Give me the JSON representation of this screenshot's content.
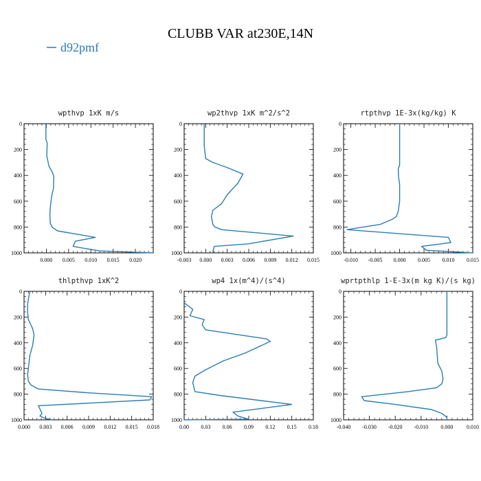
{
  "figure": {
    "title": "CLUBB VAR at230E,14N",
    "legend": {
      "label": "d92pmf",
      "color": "#2b7bb4",
      "placement": "top-left"
    }
  },
  "chart_data": [
    {
      "type": "line",
      "title": "wpthvp   1xK m/s",
      "xlim": [
        -0.005,
        0.024
      ],
      "ylim": [
        1000,
        0
      ],
      "xticks": [
        0.0,
        0.005,
        0.01,
        0.015,
        0.02
      ],
      "xtick_labels": [
        "0.000",
        "0.005",
        "0.010",
        "0.015",
        "0.020"
      ],
      "yticks": [
        0,
        200,
        400,
        600,
        800,
        1000
      ],
      "series": [
        {
          "name": "d92pmf",
          "color": "#2b7bb4",
          "x": [
            -0.0001,
            -0.0001,
            0.0002,
            0.0001,
            0.0006,
            0.0013,
            0.0017,
            0.0016,
            0.0012,
            0.0009,
            0.0008,
            0.0009,
            0.0013,
            0.0025,
            0.011,
            0.0065,
            0.006,
            0.012,
            0.024
          ],
          "y": [
            0,
            120,
            150,
            250,
            330,
            370,
            410,
            500,
            560,
            650,
            700,
            770,
            800,
            830,
            880,
            910,
            950,
            985,
            1000
          ]
        }
      ]
    },
    {
      "type": "line",
      "title": "wp2thvp   1xK m^2/s^2",
      "xlim": [
        -0.003,
        0.015
      ],
      "ylim": [
        1000,
        0
      ],
      "xticks": [
        -0.003,
        0.0,
        0.003,
        0.006,
        0.009,
        0.012,
        0.015
      ],
      "xtick_labels": [
        "-0.003",
        "0.000",
        "0.003",
        "0.006",
        "0.009",
        "0.012",
        "0.015"
      ],
      "yticks": [
        0,
        200,
        400,
        600,
        800,
        1000
      ],
      "series": [
        {
          "name": "d92pmf",
          "color": "#2b7bb4",
          "x": [
            -0.0002,
            -0.0002,
            0.0,
            0.001,
            0.003,
            0.0052,
            0.0045,
            0.003,
            0.0022,
            0.001,
            0.0008,
            0.001,
            0.0013,
            0.0022,
            0.0122,
            0.006,
            0.0012,
            0.001,
            0.0012
          ],
          "y": [
            0,
            170,
            270,
            300,
            340,
            390,
            460,
            550,
            620,
            670,
            720,
            780,
            800,
            820,
            870,
            930,
            950,
            990,
            1000
          ]
        }
      ]
    },
    {
      "type": "line",
      "title": "rtpthvp   1E-3x(kg/kg) K",
      "xlim": [
        -0.0115,
        0.015
      ],
      "ylim": [
        1000,
        0
      ],
      "xticks": [
        -0.01,
        -0.005,
        0.0,
        0.005,
        0.01,
        0.015
      ],
      "xtick_labels": [
        "-0.010",
        "-0.005",
        "0.000",
        "0.005",
        "0.010",
        "0.015"
      ],
      "yticks": [
        0,
        200,
        400,
        600,
        800,
        1000
      ],
      "series": [
        {
          "name": "d92pmf",
          "color": "#2b7bb4",
          "x": [
            0.0,
            0.0,
            -0.0003,
            -0.0002,
            0.0,
            0.0,
            -0.0003,
            -0.0007,
            -0.0015,
            -0.004,
            -0.0108,
            -0.0005,
            0.01,
            0.0105,
            0.0045,
            0.0055,
            0.015
          ],
          "y": [
            0,
            320,
            350,
            420,
            470,
            600,
            680,
            720,
            740,
            780,
            820,
            850,
            880,
            920,
            950,
            980,
            1000
          ]
        }
      ]
    },
    {
      "type": "line",
      "title": "thlpthvp   1xK^2",
      "xlim": [
        0.0,
        0.018
      ],
      "ylim": [
        1000,
        0
      ],
      "xticks": [
        0.0,
        0.003,
        0.006,
        0.009,
        0.012,
        0.015,
        0.018
      ],
      "xtick_labels": [
        "0.000",
        "0.003",
        "0.006",
        "0.009",
        "0.012",
        "0.015",
        "0.018"
      ],
      "yticks": [
        0,
        200,
        400,
        600,
        800,
        1000
      ],
      "series": [
        {
          "name": "d92pmf",
          "color": "#2b7bb4",
          "x": [
            0.0008,
            0.0006,
            0.0005,
            0.0005,
            0.0006,
            0.0012,
            0.0014,
            0.0012,
            0.0008,
            0.0006,
            0.0005,
            0.0006,
            0.001,
            0.002,
            0.009,
            0.0178,
            0.0175,
            0.009,
            0.002,
            0.0025,
            0.0022,
            0.003,
            0.004
          ],
          "y": [
            0,
            60,
            100,
            160,
            220,
            290,
            340,
            420,
            500,
            600,
            650,
            700,
            730,
            760,
            790,
            820,
            845,
            870,
            890,
            950,
            970,
            990,
            1000
          ]
        }
      ]
    },
    {
      "type": "line",
      "title": "wp4   1x(m^4)/(s^4)",
      "xlim": [
        0.0,
        0.18
      ],
      "ylim": [
        1000,
        0
      ],
      "xticks": [
        0.0,
        0.03,
        0.06,
        0.09,
        0.12,
        0.15,
        0.18
      ],
      "xtick_labels": [
        "0.00",
        "0.03",
        "0.06",
        "0.09",
        "0.12",
        "0.15",
        "0.18"
      ],
      "yticks": [
        0,
        200,
        400,
        600,
        800,
        1000
      ],
      "series": [
        {
          "name": "d92pmf",
          "color": "#2b7bb4",
          "x": [
            0.0,
            0.005,
            0.012,
            0.008,
            0.028,
            0.025,
            0.03,
            0.115,
            0.12,
            0.085,
            0.055,
            0.03,
            0.015,
            0.012,
            0.015,
            0.05,
            0.15,
            0.068,
            0.075,
            0.09,
            0.0
          ],
          "y": [
            90,
            110,
            140,
            190,
            220,
            260,
            300,
            370,
            390,
            480,
            540,
            610,
            660,
            710,
            780,
            810,
            880,
            940,
            970,
            995,
            1000
          ]
        }
      ]
    },
    {
      "type": "line",
      "title": "wprtpthlp   1-E-3x(m kg K)/(s kg)",
      "xlim": [
        -0.04,
        0.01
      ],
      "ylim": [
        1000,
        0
      ],
      "xticks": [
        -0.04,
        -0.03,
        -0.02,
        -0.01,
        0.0,
        0.01
      ],
      "xtick_labels": [
        "-0.040",
        "-0.030",
        "-0.020",
        "-0.010",
        "0.000",
        "0.010"
      ],
      "yticks": [
        0,
        200,
        400,
        600,
        800,
        1000
      ],
      "series": [
        {
          "name": "d92pmf",
          "color": "#2b7bb4",
          "x": [
            0.0,
            0.0,
            -0.0005,
            -0.0045,
            -0.004,
            -0.0035,
            -0.002,
            -0.0015,
            -0.002,
            -0.004,
            -0.015,
            -0.033,
            -0.032,
            -0.02,
            -0.006,
            -0.002,
            0.0,
            0.0
          ],
          "y": [
            0,
            340,
            360,
            380,
            430,
            560,
            620,
            680,
            720,
            750,
            780,
            820,
            850,
            880,
            920,
            950,
            980,
            1000
          ]
        }
      ]
    }
  ]
}
